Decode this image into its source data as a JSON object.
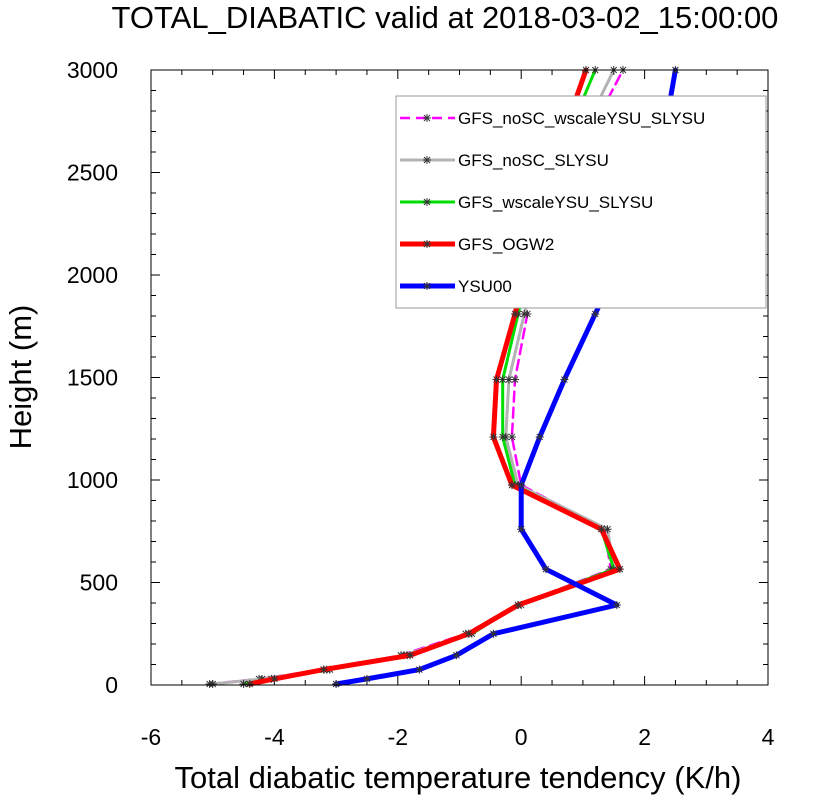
{
  "chart_data": {
    "type": "line",
    "title": "TOTAL_DIABATIC valid at 2018-03-02_15:00:00",
    "xlabel": "Total diabatic temperature tendency (K/h)",
    "ylabel": "Height (m)",
    "xlim": [
      -6,
      4
    ],
    "ylim": [
      0,
      3000
    ],
    "x_ticks": [
      -6,
      -4,
      -2,
      0,
      2,
      4
    ],
    "y_ticks": [
      0,
      500,
      1000,
      1500,
      2000,
      2500,
      3000
    ],
    "x_tick_labels": [
      "-6",
      "-4",
      "-2",
      "0",
      "2",
      "4"
    ],
    "y_tick_labels": [
      "0",
      "500",
      "1000",
      "1500",
      "2000",
      "2500",
      "3000"
    ],
    "grid": false,
    "legend_position": "top-right",
    "series": [
      {
        "name": "GFS_noSC_wscaleYSU_SLYSU",
        "color": "#ff00ff",
        "dash": true,
        "width": 2.5,
        "points": [
          [
            -5.05,
            5
          ],
          [
            -4.25,
            30
          ],
          [
            -3.2,
            75
          ],
          [
            -1.95,
            145
          ],
          [
            -0.9,
            250
          ],
          [
            -0.05,
            390
          ],
          [
            1.45,
            565
          ],
          [
            1.35,
            760
          ],
          [
            0.0,
            975
          ],
          [
            -0.15,
            1210
          ],
          [
            -0.1,
            1490
          ],
          [
            0.1,
            1810
          ],
          [
            0.4,
            2160
          ],
          [
            0.9,
            2570
          ],
          [
            1.65,
            3000
          ]
        ]
      },
      {
        "name": "GFS_noSC_SLYSU",
        "color": "#b3b3b3",
        "dash": false,
        "width": 3,
        "points": [
          [
            -5.0,
            5
          ],
          [
            -4.2,
            30
          ],
          [
            -3.15,
            75
          ],
          [
            -1.9,
            145
          ],
          [
            -0.85,
            250
          ],
          [
            0.0,
            390
          ],
          [
            1.5,
            565
          ],
          [
            1.4,
            760
          ],
          [
            -0.05,
            975
          ],
          [
            -0.25,
            1210
          ],
          [
            -0.2,
            1490
          ],
          [
            0.05,
            1810
          ],
          [
            0.35,
            2160
          ],
          [
            0.8,
            2570
          ],
          [
            1.5,
            3000
          ]
        ]
      },
      {
        "name": "GFS_wscaleYSU_SLYSU",
        "color": "#00dd00",
        "dash": false,
        "width": 3,
        "points": [
          [
            -4.5,
            5
          ],
          [
            -4.05,
            30
          ],
          [
            -3.1,
            75
          ],
          [
            -1.85,
            145
          ],
          [
            -0.8,
            250
          ],
          [
            -0.05,
            390
          ],
          [
            1.5,
            565
          ],
          [
            1.3,
            760
          ],
          [
            -0.1,
            975
          ],
          [
            -0.3,
            1210
          ],
          [
            -0.3,
            1490
          ],
          [
            -0.05,
            1810
          ],
          [
            0.25,
            2160
          ],
          [
            0.6,
            2570
          ],
          [
            1.2,
            3000
          ]
        ]
      },
      {
        "name": "GFS_OGW2",
        "color": "#ff0000",
        "dash": false,
        "width": 5,
        "points": [
          [
            -4.4,
            5
          ],
          [
            -4.0,
            30
          ],
          [
            -3.2,
            75
          ],
          [
            -1.8,
            145
          ],
          [
            -0.85,
            250
          ],
          [
            -0.05,
            390
          ],
          [
            1.6,
            565
          ],
          [
            1.3,
            760
          ],
          [
            -0.15,
            975
          ],
          [
            -0.45,
            1210
          ],
          [
            -0.4,
            1490
          ],
          [
            -0.1,
            1810
          ],
          [
            0.2,
            2160
          ],
          [
            0.55,
            2570
          ],
          [
            1.05,
            3000
          ]
        ]
      },
      {
        "name": "YSU00",
        "color": "#0000ff",
        "dash": false,
        "width": 5,
        "points": [
          [
            -3.0,
            5
          ],
          [
            -2.5,
            30
          ],
          [
            -1.65,
            75
          ],
          [
            -1.05,
            145
          ],
          [
            -0.45,
            250
          ],
          [
            1.55,
            390
          ],
          [
            0.4,
            565
          ],
          [
            0.0,
            760
          ],
          [
            0.0,
            975
          ],
          [
            0.3,
            1210
          ],
          [
            0.7,
            1490
          ],
          [
            1.2,
            1810
          ],
          [
            1.75,
            2160
          ],
          [
            2.25,
            2570
          ],
          [
            2.5,
            3000
          ]
        ]
      }
    ]
  }
}
